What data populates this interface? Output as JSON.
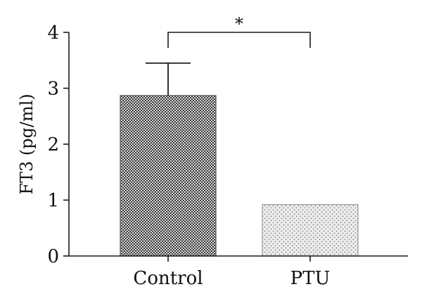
{
  "chart_data": {
    "type": "bar",
    "categories": [
      "Control",
      "PTU"
    ],
    "values": [
      2.87,
      0.92
    ],
    "error_upper": [
      3.45,
      0.93
    ],
    "ylabel": "FT3 (pg/ml)",
    "ylim": [
      0,
      4
    ],
    "yticks": [
      "0",
      "1",
      "2",
      "3",
      "4"
    ],
    "grid": false,
    "bar_fills": [
      "dark-checkered",
      "light-dotted"
    ],
    "significance": {
      "between": [
        "Control",
        "PTU"
      ],
      "label": "*"
    }
  }
}
